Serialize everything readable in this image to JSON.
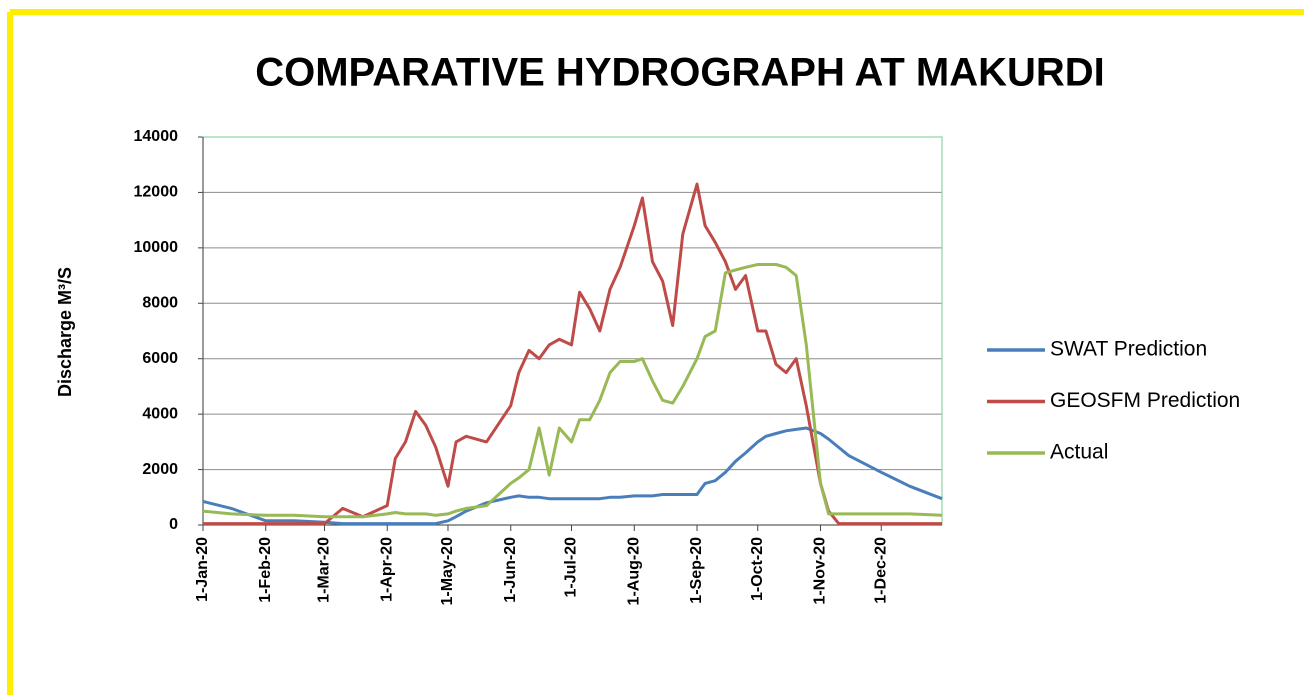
{
  "chart_data": {
    "type": "line",
    "title": "COMPARATIVE HYDROGRAPH AT MAKURDI",
    "y_label": "Discharge  M³/S",
    "x": [
      "2020-01-01",
      "2020-01-15",
      "2020-02-01",
      "2020-02-15",
      "2020-03-01",
      "2020-03-10",
      "2020-03-20",
      "2020-04-01",
      "2020-04-05",
      "2020-04-10",
      "2020-04-15",
      "2020-04-20",
      "2020-04-25",
      "2020-05-01",
      "2020-05-05",
      "2020-05-10",
      "2020-05-20",
      "2020-06-01",
      "2020-06-05",
      "2020-06-10",
      "2020-06-15",
      "2020-06-20",
      "2020-06-25",
      "2020-07-01",
      "2020-07-05",
      "2020-07-10",
      "2020-07-15",
      "2020-07-20",
      "2020-07-25",
      "2020-08-01",
      "2020-08-05",
      "2020-08-10",
      "2020-08-15",
      "2020-08-20",
      "2020-08-25",
      "2020-09-01",
      "2020-09-05",
      "2020-09-10",
      "2020-09-15",
      "2020-09-20",
      "2020-09-25",
      "2020-10-01",
      "2020-10-05",
      "2020-10-10",
      "2020-10-15",
      "2020-10-20",
      "2020-10-25",
      "2020-11-01",
      "2020-11-05",
      "2020-11-10",
      "2020-11-15",
      "2020-12-01",
      "2020-12-15",
      "2020-12-31"
    ],
    "series": [
      {
        "name": "SWAT Prediction",
        "color": "#4a7ebb",
        "values": [
          850,
          600,
          150,
          150,
          100,
          50,
          50,
          50,
          50,
          50,
          50,
          50,
          50,
          150,
          300,
          500,
          800,
          1000,
          1050,
          1000,
          1000,
          950,
          950,
          950,
          950,
          950,
          950,
          1000,
          1000,
          1050,
          1050,
          1050,
          1100,
          1100,
          1100,
          1100,
          1500,
          1600,
          1900,
          2300,
          2600,
          3000,
          3200,
          3300,
          3400,
          3450,
          3500,
          3300,
          3100,
          2800,
          2500,
          1900,
          1400,
          950
        ]
      },
      {
        "name": "GEOSFM Prediction",
        "color": "#be4b48",
        "values": [
          50,
          50,
          50,
          50,
          50,
          600,
          300,
          700,
          2400,
          3000,
          4100,
          3600,
          2800,
          1400,
          3000,
          3200,
          3000,
          4300,
          5500,
          6300,
          6000,
          6500,
          6700,
          6500,
          8400,
          7800,
          7000,
          8500,
          9300,
          10800,
          11800,
          9500,
          8800,
          7200,
          10500,
          12300,
          10800,
          10200,
          9500,
          8500,
          9000,
          7000,
          7000,
          5800,
          5500,
          6000,
          4300,
          1500,
          500,
          50,
          50,
          50,
          50,
          50
        ]
      },
      {
        "name": "Actual",
        "color": "#98b954",
        "values": [
          500,
          400,
          350,
          350,
          300,
          300,
          300,
          400,
          450,
          400,
          400,
          400,
          350,
          400,
          500,
          600,
          700,
          1500,
          1700,
          2000,
          3500,
          1800,
          3500,
          3000,
          3800,
          3800,
          4500,
          5500,
          5900,
          5900,
          6000,
          5200,
          4500,
          4400,
          5000,
          6000,
          6800,
          7000,
          9100,
          9200,
          9300,
          9400,
          9400,
          9400,
          9300,
          9000,
          6500,
          1500,
          400,
          400,
          400,
          400,
          400,
          350
        ]
      }
    ],
    "xlim": [
      "2020-01-01",
      "2020-12-31"
    ],
    "xticks": [
      {
        "value": "2020-01-01",
        "label": "1-Jan-20"
      },
      {
        "value": "2020-02-01",
        "label": "1-Feb-20"
      },
      {
        "value": "2020-03-01",
        "label": "1-Mar-20"
      },
      {
        "value": "2020-04-01",
        "label": "1-Apr-20"
      },
      {
        "value": "2020-05-01",
        "label": "1-May-20"
      },
      {
        "value": "2020-06-01",
        "label": "1-Jun-20"
      },
      {
        "value": "2020-07-01",
        "label": "1-Jul-20"
      },
      {
        "value": "2020-08-01",
        "label": "1-Aug-20"
      },
      {
        "value": "2020-09-01",
        "label": "1-Sep-20"
      },
      {
        "value": "2020-10-01",
        "label": "1-Oct-20"
      },
      {
        "value": "2020-11-01",
        "label": "1-Nov-20"
      },
      {
        "value": "2020-12-01",
        "label": "1-Dec-20"
      }
    ],
    "ylim": [
      0,
      14000
    ],
    "yticks": [
      0,
      2000,
      4000,
      6000,
      8000,
      10000,
      12000,
      14000
    ],
    "grid": true,
    "legend": "right"
  }
}
